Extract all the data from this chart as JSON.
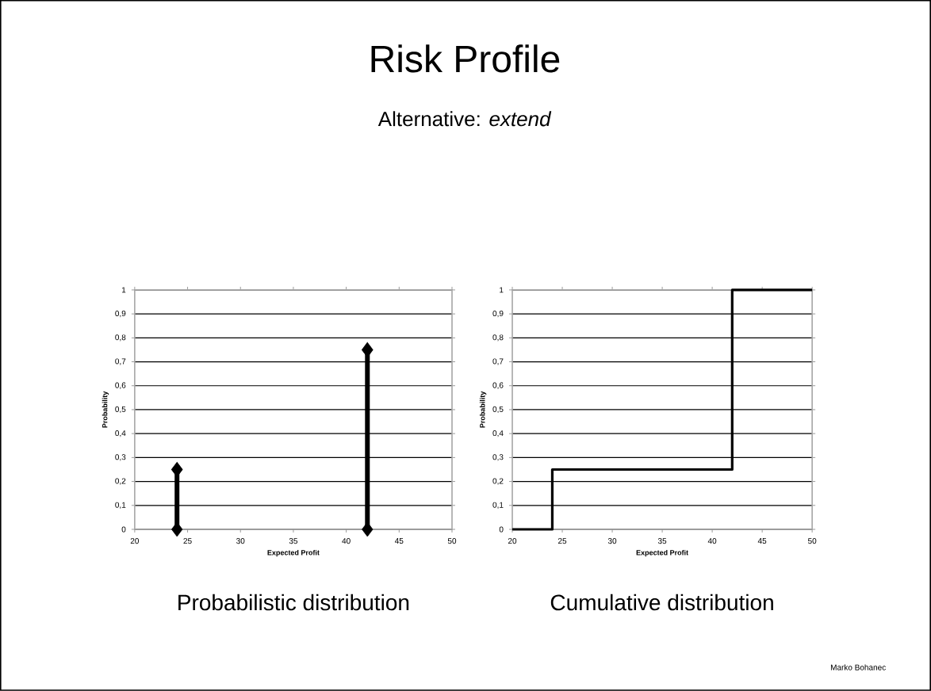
{
  "chart_data": [
    {
      "type": "lollipop",
      "title": "Probabilistic distribution",
      "annotations": [
        "Risk Profile",
        "Alternative: *extend*",
        "Marko Bohanec"
      ],
      "xlabel": "Expected Profit",
      "ylabel": "Probability",
      "x": [
        24,
        42
      ],
      "marker": "diamond",
      "series": [
        {
          "type": "lollipop",
          "color": "#000000",
          "values": [
            0.25,
            0.75
          ]
        },
        {
          "type": "scatter",
          "color": "#000000",
          "values": [
            0,
            0
          ]
        }
      ],
      "xlim": [
        20,
        50
      ],
      "xticks": [
        20,
        25,
        30,
        35,
        40,
        45,
        50
      ],
      "ylim": [
        0,
        1
      ],
      "yticks": [
        0,
        {
          "value": 0.1,
          "label": "0,1"
        },
        {
          "value": 0.2,
          "label": "0,2"
        },
        {
          "value": 0.3,
          "label": "0,3"
        },
        {
          "value": 0.4,
          "label": "0,4"
        },
        {
          "value": 0.5,
          "label": "0,5"
        },
        {
          "value": 0.6,
          "label": "0,6"
        },
        {
          "value": 0.7,
          "label": "0,7"
        },
        {
          "value": 0.8,
          "label": "0,8"
        },
        {
          "value": 0.9,
          "label": "0,9"
        },
        1
      ],
      "grid": "y"
    },
    {
      "type": "step",
      "title": "Cumulative distribution",
      "xlabel": "Expected Profit",
      "ylabel": "Probability",
      "x": [
        20,
        24,
        42,
        50
      ],
      "values": [
        0,
        0.25,
        1,
        1
      ],
      "color": "#000000",
      "xlim": [
        20,
        50
      ],
      "xticks": [
        20,
        25,
        30,
        35,
        40,
        45,
        50
      ],
      "ylim": [
        0,
        1
      ],
      "yticks": [
        0,
        {
          "value": 0.1,
          "label": "0,1"
        },
        {
          "value": 0.2,
          "label": "0,2"
        },
        {
          "value": 0.3,
          "label": "0,3"
        },
        {
          "value": 0.4,
          "label": "0,4"
        },
        {
          "value": 0.5,
          "label": "0,5"
        },
        {
          "value": 0.6,
          "label": "0,6"
        },
        {
          "value": 0.7,
          "label": "0,7"
        },
        {
          "value": 0.8,
          "label": "0,8"
        },
        {
          "value": 0.9,
          "label": "0,9"
        },
        1
      ],
      "grid": "y"
    }
  ]
}
